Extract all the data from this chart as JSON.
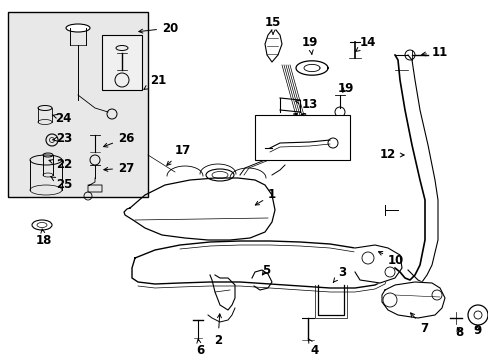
{
  "bg_color": "#ffffff",
  "line_color": "#000000",
  "fig_width": 4.89,
  "fig_height": 3.6,
  "dpi": 100,
  "xmin": 0,
  "xmax": 489,
  "ymin": 0,
  "ymax": 360
}
